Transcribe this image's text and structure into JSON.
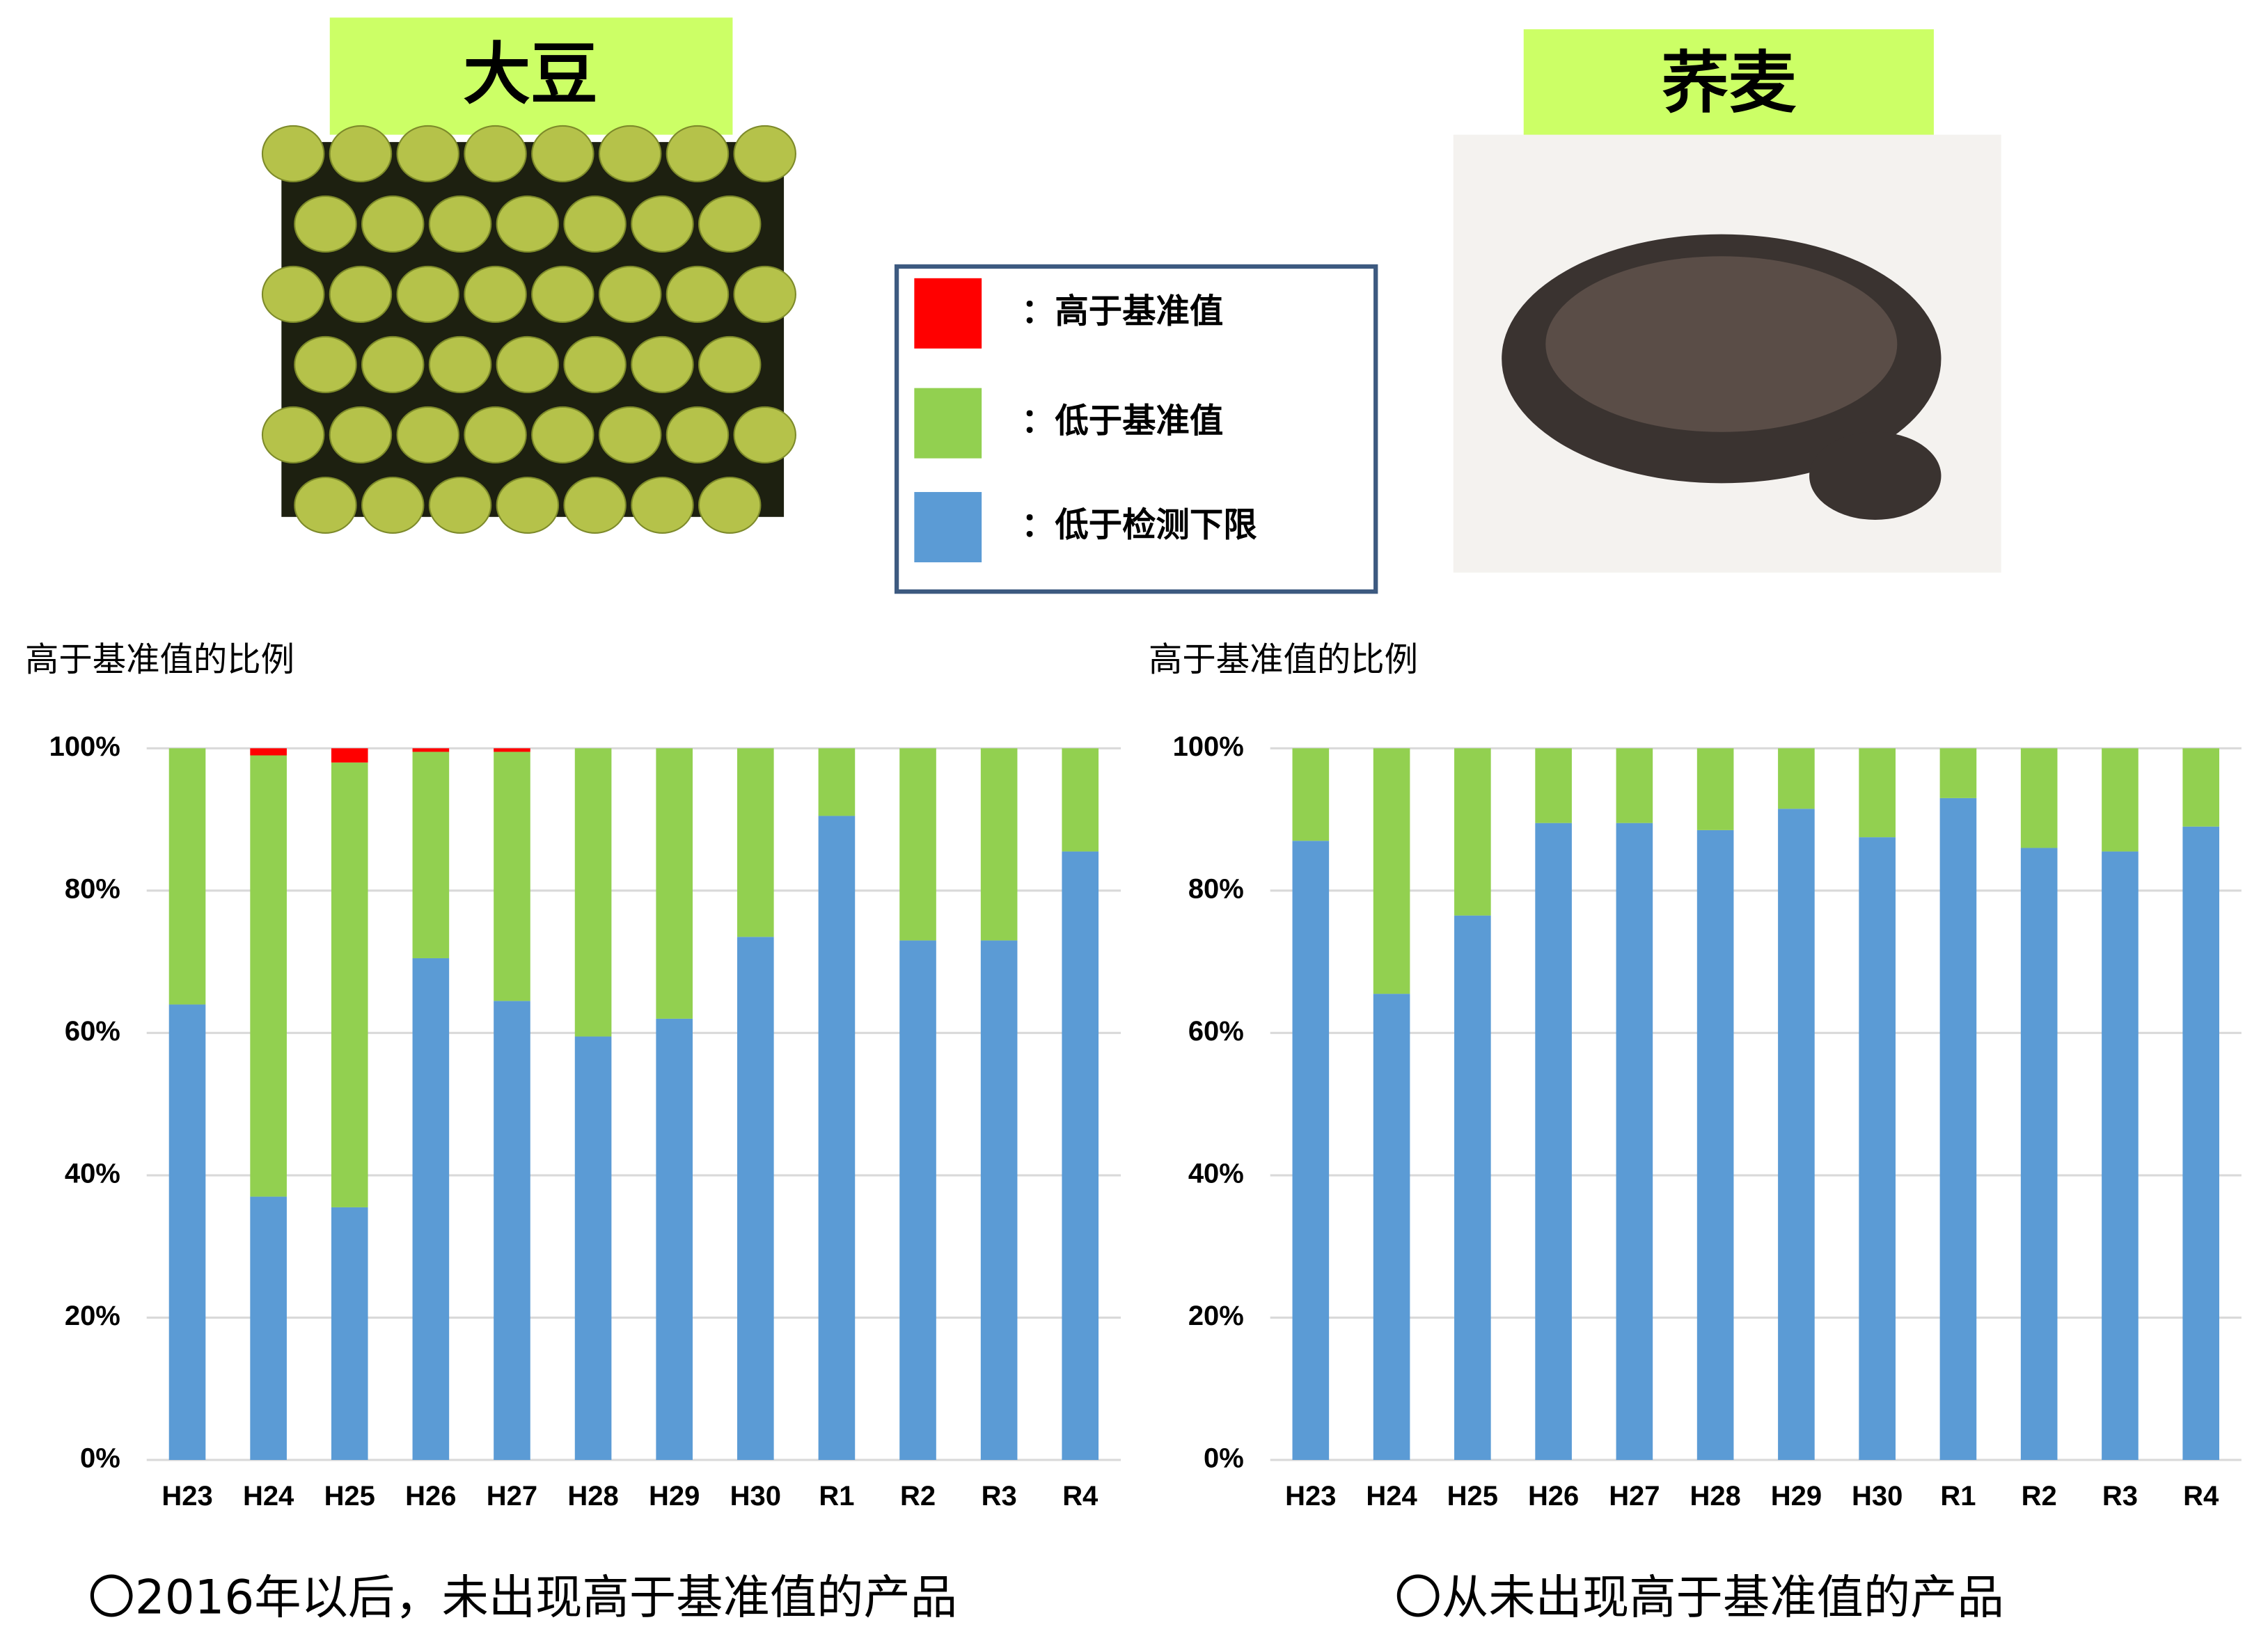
{
  "panels": {
    "titles": [
      "大豆",
      "荞麦"
    ]
  },
  "chart_data": [
    {
      "type": "bar",
      "stacked": true,
      "y_label": "高于基准值的比例",
      "note": "〇2016年以后，未出现高于基准值的产品",
      "categories": [
        "H23",
        "H24",
        "H25",
        "H26",
        "H27",
        "H28",
        "H29",
        "H30",
        "R1",
        "R2",
        "R3",
        "R4"
      ],
      "series": [
        {
          "name": "：高于基准值",
          "color": "#ff0000",
          "values": [
            0,
            1,
            2,
            0.5,
            0.5,
            0,
            0,
            0,
            0,
            0,
            0,
            0
          ]
        },
        {
          "name": "：低于基准值",
          "color": "#92d050",
          "values": [
            36,
            62,
            62.5,
            29,
            35,
            40.5,
            38,
            26.5,
            9.5,
            27,
            27,
            14.5
          ]
        },
        {
          "name": "：低于检测下限",
          "color": "#5b9bd5",
          "values": [
            64,
            37,
            35.5,
            70.5,
            64.5,
            59.5,
            62,
            73.5,
            90.5,
            73,
            73,
            85.5
          ]
        }
      ],
      "ylim": [
        0,
        100
      ],
      "yticks": [
        {
          "value": 0,
          "label": "0%"
        },
        {
          "value": 20,
          "label": "20%"
        },
        {
          "value": 40,
          "label": "40%"
        },
        {
          "value": 60,
          "label": "60%"
        },
        {
          "value": 80,
          "label": "80%"
        },
        {
          "value": 100,
          "label": "100%"
        }
      ],
      "grid": true
    },
    {
      "type": "bar",
      "stacked": true,
      "y_label": "高于基准值的比例",
      "note": "〇从未出现高于基准值的产品",
      "categories": [
        "H23",
        "H24",
        "H25",
        "H26",
        "H27",
        "H28",
        "H29",
        "H30",
        "R1",
        "R2",
        "R3",
        "R4"
      ],
      "series": [
        {
          "color": "#ff0000",
          "values": [
            0,
            0,
            0,
            0,
            0,
            0,
            0,
            0,
            0,
            0,
            0,
            0
          ]
        },
        {
          "color": "#92d050",
          "values": [
            13,
            34.5,
            23.5,
            10.5,
            10.5,
            11.5,
            8.5,
            12.5,
            7,
            14,
            14.5,
            11
          ]
        },
        {
          "color": "#5b9bd5",
          "values": [
            87,
            65.5,
            76.5,
            89.5,
            89.5,
            88.5,
            91.5,
            87.5,
            93,
            86,
            85.5,
            89
          ]
        }
      ],
      "ylim": [
        0,
        100
      ],
      "yticks": [
        {
          "value": 0,
          "label": "0%"
        },
        {
          "value": 20,
          "label": "20%"
        },
        {
          "value": 40,
          "label": "40%"
        },
        {
          "value": 60,
          "label": "60%"
        },
        {
          "value": 80,
          "label": "80%"
        },
        {
          "value": 100,
          "label": "100%"
        }
      ],
      "grid": true
    }
  ]
}
